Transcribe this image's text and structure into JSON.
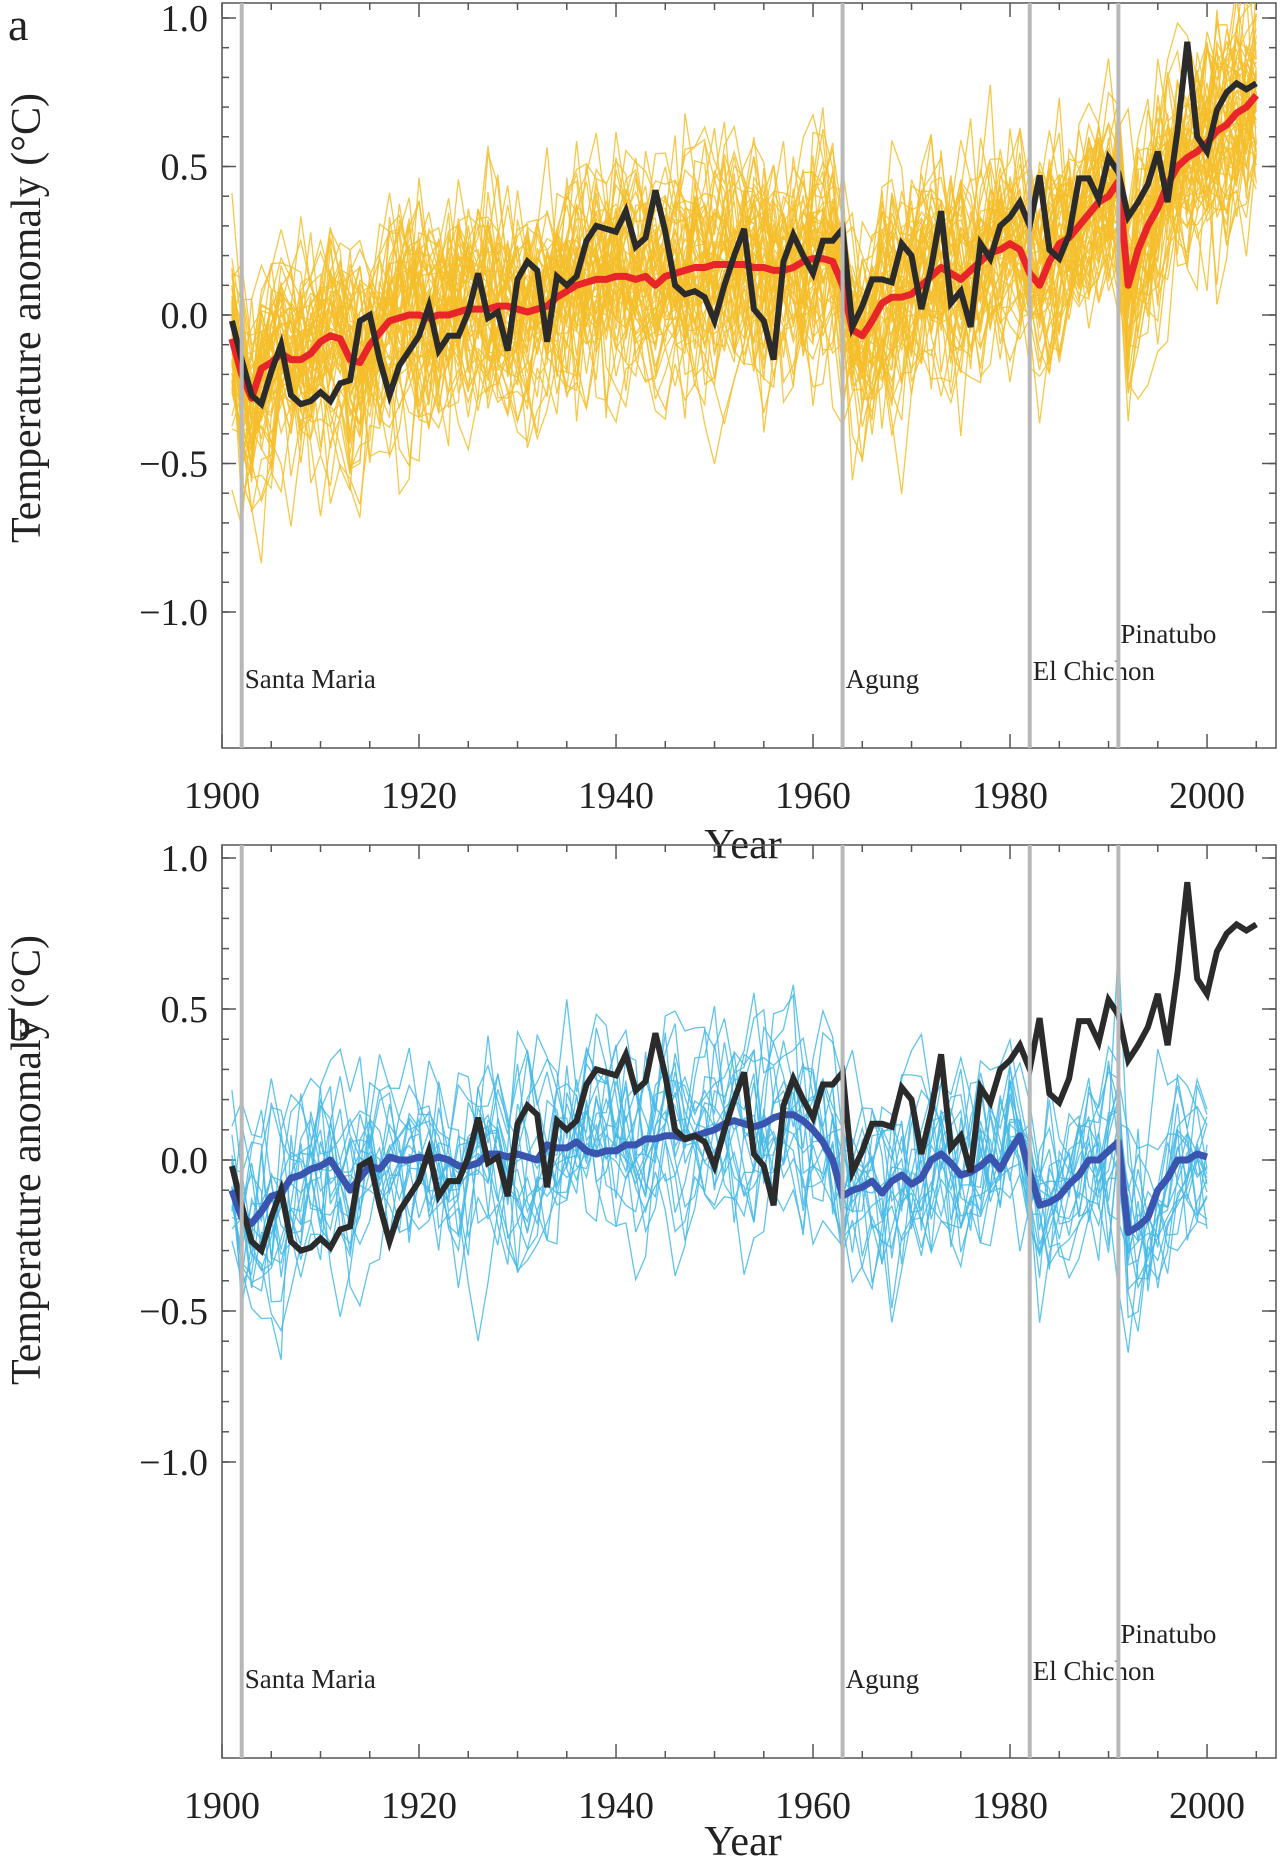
{
  "chart_data": [
    {
      "panel": "a",
      "type": "line",
      "xlabel": "Year",
      "ylabel": "Temperature anomaly (°C)",
      "xlim": [
        1900,
        2007
      ],
      "ylim": [
        -1.0,
        1.0
      ],
      "xticks": [
        "1900",
        "1920",
        "1940",
        "1960",
        "1980",
        "2000"
      ],
      "yticks": [
        "−1.0",
        "−0.5",
        "0.0",
        "0.5",
        "1.0"
      ],
      "grid": false,
      "colors": {
        "ensemble": "#f5be2a",
        "model_mean": "#e8262a",
        "observed": "#2b2b2b",
        "volcano": "#b8b8b8"
      },
      "ensemble_members": 58,
      "ensemble_spread": 0.15,
      "volcanoes": [
        {
          "name": "Santa Maria",
          "year": 1902
        },
        {
          "name": "Agung",
          "year": 1963
        },
        {
          "name": "El Chichon",
          "year": 1982
        },
        {
          "name": "Pinatubo",
          "year": 1991
        }
      ],
      "series": [
        {
          "role": "model_mean",
          "x": [
            1901,
            1902,
            1903,
            1904,
            1905,
            1906,
            1907,
            1908,
            1909,
            1910,
            1911,
            1912,
            1913,
            1914,
            1915,
            1916,
            1917,
            1918,
            1919,
            1920,
            1921,
            1922,
            1923,
            1924,
            1925,
            1926,
            1927,
            1928,
            1929,
            1930,
            1931,
            1932,
            1933,
            1934,
            1935,
            1936,
            1937,
            1938,
            1939,
            1940,
            1941,
            1942,
            1943,
            1944,
            1945,
            1946,
            1947,
            1948,
            1949,
            1950,
            1951,
            1952,
            1953,
            1954,
            1955,
            1956,
            1957,
            1958,
            1959,
            1960,
            1961,
            1962,
            1963,
            1964,
            1965,
            1966,
            1967,
            1968,
            1969,
            1970,
            1971,
            1972,
            1973,
            1974,
            1975,
            1976,
            1977,
            1978,
            1979,
            1980,
            1981,
            1982,
            1983,
            1984,
            1985,
            1986,
            1987,
            1988,
            1989,
            1990,
            1991,
            1992,
            1993,
            1994,
            1995,
            1996,
            1997,
            1998,
            1999,
            2000,
            2001,
            2002,
            2003,
            2004,
            2005
          ],
          "y": [
            -0.08,
            -0.2,
            -0.28,
            -0.18,
            -0.16,
            -0.13,
            -0.15,
            -0.15,
            -0.13,
            -0.09,
            -0.07,
            -0.08,
            -0.15,
            -0.16,
            -0.1,
            -0.06,
            -0.02,
            -0.01,
            0.0,
            0.0,
            -0.01,
            0.0,
            0.0,
            0.01,
            0.02,
            0.02,
            0.02,
            0.03,
            0.03,
            0.02,
            0.01,
            0.02,
            0.03,
            0.06,
            0.08,
            0.1,
            0.11,
            0.12,
            0.12,
            0.13,
            0.13,
            0.12,
            0.13,
            0.1,
            0.13,
            0.14,
            0.15,
            0.16,
            0.16,
            0.17,
            0.17,
            0.17,
            0.17,
            0.16,
            0.16,
            0.15,
            0.15,
            0.16,
            0.18,
            0.19,
            0.19,
            0.18,
            0.1,
            -0.05,
            -0.07,
            -0.02,
            0.04,
            0.06,
            0.06,
            0.07,
            0.1,
            0.13,
            0.16,
            0.14,
            0.12,
            0.15,
            0.18,
            0.21,
            0.22,
            0.24,
            0.22,
            0.14,
            0.1,
            0.18,
            0.24,
            0.26,
            0.3,
            0.34,
            0.38,
            0.4,
            0.45,
            0.1,
            0.22,
            0.3,
            0.36,
            0.44,
            0.5,
            0.53,
            0.55,
            0.58,
            0.62,
            0.64,
            0.68,
            0.7,
            0.74
          ]
        },
        {
          "role": "observed",
          "x": [
            1901,
            1902,
            1903,
            1904,
            1905,
            1906,
            1907,
            1908,
            1909,
            1910,
            1911,
            1912,
            1913,
            1914,
            1915,
            1916,
            1917,
            1918,
            1919,
            1920,
            1921,
            1922,
            1923,
            1924,
            1925,
            1926,
            1927,
            1928,
            1929,
            1930,
            1931,
            1932,
            1933,
            1934,
            1935,
            1936,
            1937,
            1938,
            1939,
            1940,
            1941,
            1942,
            1943,
            1944,
            1945,
            1946,
            1947,
            1948,
            1949,
            1950,
            1951,
            1952,
            1953,
            1954,
            1955,
            1956,
            1957,
            1958,
            1959,
            1960,
            1961,
            1962,
            1963,
            1964,
            1965,
            1966,
            1967,
            1968,
            1969,
            1970,
            1971,
            1972,
            1973,
            1974,
            1975,
            1976,
            1977,
            1978,
            1979,
            1980,
            1981,
            1982,
            1983,
            1984,
            1985,
            1986,
            1987,
            1988,
            1989,
            1990,
            1991,
            1992,
            1993,
            1994,
            1995,
            1996,
            1997,
            1998,
            1999,
            2000,
            2001,
            2002,
            2003,
            2004,
            2005
          ],
          "y": [
            -0.02,
            -0.15,
            -0.27,
            -0.3,
            -0.19,
            -0.1,
            -0.27,
            -0.3,
            -0.29,
            -0.26,
            -0.29,
            -0.23,
            -0.22,
            -0.02,
            0.0,
            -0.15,
            -0.27,
            -0.17,
            -0.12,
            -0.07,
            0.03,
            -0.12,
            -0.07,
            -0.07,
            0.01,
            0.14,
            -0.01,
            0.01,
            -0.12,
            0.12,
            0.18,
            0.15,
            -0.09,
            0.13,
            0.1,
            0.13,
            0.25,
            0.3,
            0.29,
            0.28,
            0.35,
            0.23,
            0.26,
            0.42,
            0.28,
            0.1,
            0.07,
            0.08,
            0.06,
            -0.02,
            0.1,
            0.2,
            0.29,
            0.02,
            -0.02,
            -0.15,
            0.18,
            0.27,
            0.2,
            0.14,
            0.25,
            0.25,
            0.29,
            -0.04,
            0.03,
            0.12,
            0.12,
            0.11,
            0.24,
            0.2,
            0.02,
            0.16,
            0.35,
            0.04,
            0.08,
            -0.04,
            0.24,
            0.19,
            0.3,
            0.33,
            0.38,
            0.3,
            0.47,
            0.22,
            0.19,
            0.27,
            0.46,
            0.46,
            0.39,
            0.53,
            0.48,
            0.33,
            0.38,
            0.44,
            0.55,
            0.38,
            0.62,
            0.92,
            0.6,
            0.55,
            0.69,
            0.75,
            0.78,
            0.76,
            0.78
          ]
        }
      ]
    },
    {
      "panel": "b",
      "type": "line",
      "xlabel": "Year",
      "ylabel": "Temperature anomaly (°C)",
      "xlim": [
        1900,
        2007
      ],
      "ylim": [
        -1.0,
        1.0
      ],
      "xticks": [
        "1900",
        "1920",
        "1940",
        "1960",
        "1980",
        "2000"
      ],
      "yticks": [
        "−1.0",
        "−0.5",
        "0.0",
        "0.5",
        "1.0"
      ],
      "grid": false,
      "colors": {
        "ensemble": "#44b8e6",
        "model_mean": "#3a55b0",
        "observed": "#2b2b2b",
        "volcano": "#b8b8b8"
      },
      "ensemble_members": 19,
      "ensemble_spread": 0.14,
      "volcanoes": [
        {
          "name": "Santa Maria",
          "year": 1902
        },
        {
          "name": "Agung",
          "year": 1963
        },
        {
          "name": "El Chichon",
          "year": 1982
        },
        {
          "name": "Pinatubo",
          "year": 1991
        }
      ],
      "series": [
        {
          "role": "model_mean",
          "x": [
            1901,
            1902,
            1903,
            1904,
            1905,
            1906,
            1907,
            1908,
            1909,
            1910,
            1911,
            1912,
            1913,
            1914,
            1915,
            1916,
            1917,
            1918,
            1919,
            1920,
            1921,
            1922,
            1923,
            1924,
            1925,
            1926,
            1927,
            1928,
            1929,
            1930,
            1931,
            1932,
            1933,
            1934,
            1935,
            1936,
            1937,
            1938,
            1939,
            1940,
            1941,
            1942,
            1943,
            1944,
            1945,
            1946,
            1947,
            1948,
            1949,
            1950,
            1951,
            1952,
            1953,
            1954,
            1955,
            1956,
            1957,
            1958,
            1959,
            1960,
            1961,
            1962,
            1963,
            1964,
            1965,
            1966,
            1967,
            1968,
            1969,
            1970,
            1971,
            1972,
            1973,
            1974,
            1975,
            1976,
            1977,
            1978,
            1979,
            1980,
            1981,
            1982,
            1983,
            1984,
            1985,
            1986,
            1987,
            1988,
            1989,
            1990,
            1991,
            1992,
            1993,
            1994,
            1995,
            1996,
            1997,
            1998,
            1999,
            2000
          ],
          "y": [
            -0.1,
            -0.19,
            -0.21,
            -0.17,
            -0.12,
            -0.11,
            -0.06,
            -0.05,
            -0.03,
            -0.02,
            0.0,
            -0.05,
            -0.1,
            -0.06,
            -0.02,
            -0.03,
            0.01,
            0.0,
            0.0,
            0.01,
            0.0,
            0.01,
            0.0,
            -0.02,
            -0.02,
            -0.01,
            0.02,
            0.02,
            0.01,
            0.02,
            0.01,
            0.0,
            0.05,
            0.04,
            0.04,
            0.06,
            0.03,
            0.02,
            0.03,
            0.03,
            0.05,
            0.05,
            0.07,
            0.07,
            0.08,
            0.08,
            0.07,
            0.08,
            0.09,
            0.1,
            0.12,
            0.13,
            0.12,
            0.11,
            0.12,
            0.14,
            0.15,
            0.15,
            0.13,
            0.1,
            0.06,
            0.0,
            -0.12,
            -0.1,
            -0.09,
            -0.07,
            -0.11,
            -0.07,
            -0.05,
            -0.08,
            -0.06,
            0.0,
            0.02,
            -0.01,
            -0.05,
            -0.04,
            -0.02,
            0.01,
            -0.03,
            0.03,
            0.08,
            -0.04,
            -0.15,
            -0.14,
            -0.12,
            -0.08,
            -0.05,
            0.0,
            0.0,
            0.03,
            0.06,
            -0.24,
            -0.22,
            -0.19,
            -0.1,
            -0.06,
            0.0,
            0.0,
            0.02,
            0.01
          ]
        },
        {
          "role": "observed",
          "x": [
            1901,
            1902,
            1903,
            1904,
            1905,
            1906,
            1907,
            1908,
            1909,
            1910,
            1911,
            1912,
            1913,
            1914,
            1915,
            1916,
            1917,
            1918,
            1919,
            1920,
            1921,
            1922,
            1923,
            1924,
            1925,
            1926,
            1927,
            1928,
            1929,
            1930,
            1931,
            1932,
            1933,
            1934,
            1935,
            1936,
            1937,
            1938,
            1939,
            1940,
            1941,
            1942,
            1943,
            1944,
            1945,
            1946,
            1947,
            1948,
            1949,
            1950,
            1951,
            1952,
            1953,
            1954,
            1955,
            1956,
            1957,
            1958,
            1959,
            1960,
            1961,
            1962,
            1963,
            1964,
            1965,
            1966,
            1967,
            1968,
            1969,
            1970,
            1971,
            1972,
            1973,
            1974,
            1975,
            1976,
            1977,
            1978,
            1979,
            1980,
            1981,
            1982,
            1983,
            1984,
            1985,
            1986,
            1987,
            1988,
            1989,
            1990,
            1991,
            1992,
            1993,
            1994,
            1995,
            1996,
            1997,
            1998,
            1999,
            2000,
            2001,
            2002,
            2003,
            2004,
            2005
          ],
          "y": [
            -0.02,
            -0.15,
            -0.27,
            -0.3,
            -0.19,
            -0.1,
            -0.27,
            -0.3,
            -0.29,
            -0.26,
            -0.29,
            -0.23,
            -0.22,
            -0.02,
            0.0,
            -0.15,
            -0.27,
            -0.17,
            -0.12,
            -0.07,
            0.03,
            -0.12,
            -0.07,
            -0.07,
            0.01,
            0.14,
            -0.01,
            0.01,
            -0.12,
            0.12,
            0.18,
            0.15,
            -0.09,
            0.13,
            0.1,
            0.13,
            0.25,
            0.3,
            0.29,
            0.28,
            0.35,
            0.23,
            0.26,
            0.42,
            0.28,
            0.1,
            0.07,
            0.08,
            0.06,
            -0.02,
            0.1,
            0.2,
            0.29,
            0.02,
            -0.02,
            -0.15,
            0.18,
            0.27,
            0.2,
            0.14,
            0.25,
            0.25,
            0.29,
            -0.04,
            0.03,
            0.12,
            0.12,
            0.11,
            0.24,
            0.2,
            0.02,
            0.16,
            0.35,
            0.04,
            0.08,
            -0.04,
            0.24,
            0.19,
            0.3,
            0.33,
            0.38,
            0.3,
            0.47,
            0.22,
            0.19,
            0.27,
            0.46,
            0.46,
            0.39,
            0.53,
            0.48,
            0.33,
            0.38,
            0.44,
            0.55,
            0.38,
            0.62,
            0.92,
            0.6,
            0.55,
            0.69,
            0.75,
            0.78,
            0.76,
            0.78
          ]
        }
      ]
    }
  ]
}
